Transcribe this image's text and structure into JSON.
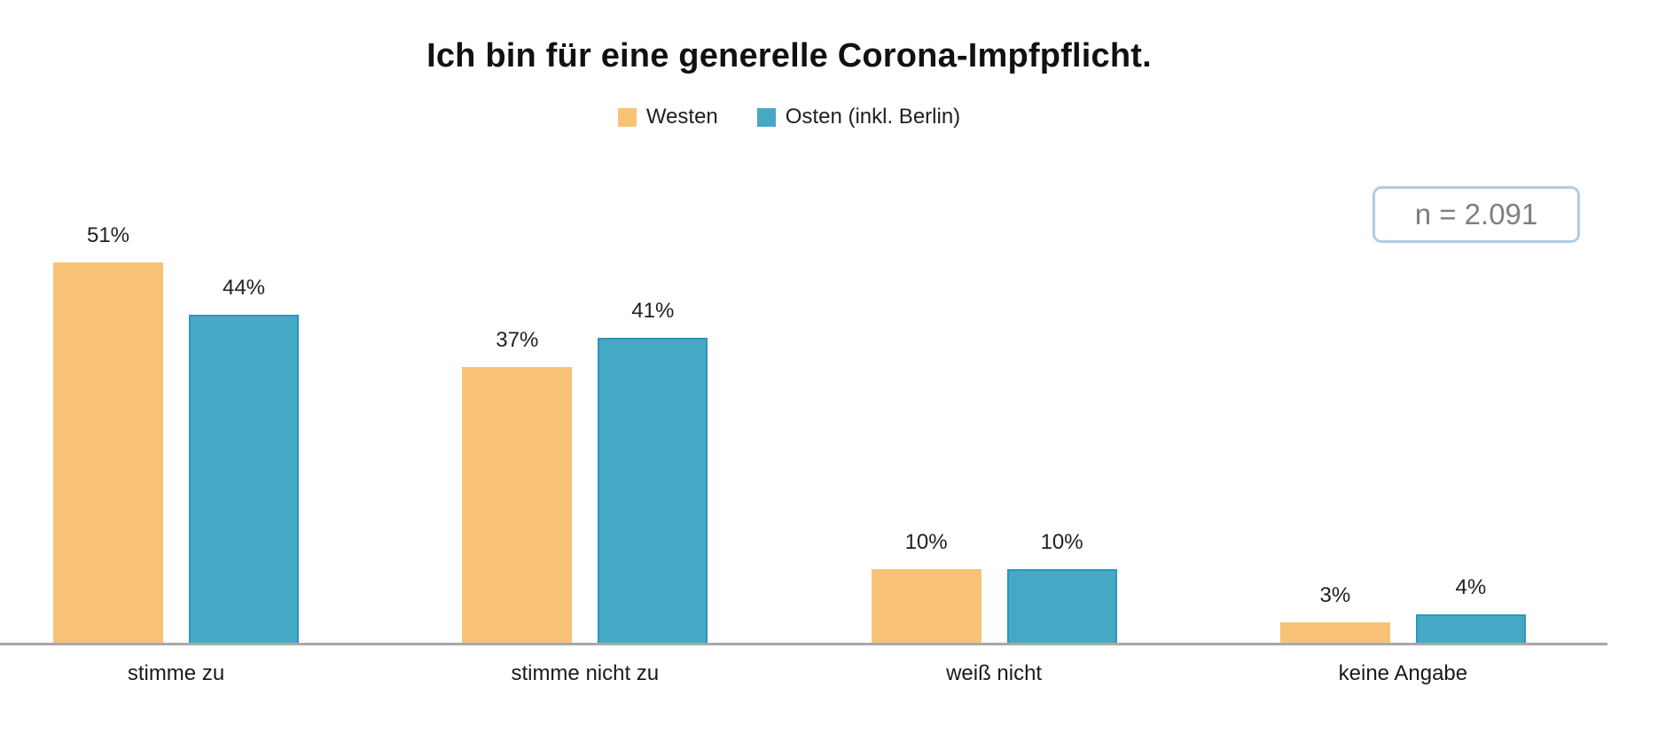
{
  "chart_data": {
    "type": "bar",
    "title": "Ich bin für eine generelle Corona-Impfpflicht.",
    "categories": [
      "stimme zu",
      "stimme nicht zu",
      "weiß nicht",
      "keine Angabe"
    ],
    "series": [
      {
        "name": "Westen",
        "color": "#F8C277",
        "border_color": "#F8C277",
        "values": [
          51,
          37,
          10,
          3
        ],
        "labels": [
          "51%",
          "37%",
          "10%",
          "3%"
        ]
      },
      {
        "name": "Osten (inkl. Berlin)",
        "color": "#45A9C6",
        "border_color": "#2D97BB",
        "values": [
          44,
          41,
          10,
          4
        ],
        "labels": [
          "44%",
          "41%",
          "10%",
          "4%"
        ]
      }
    ],
    "value_suffix": "%",
    "ylim": [
      0,
      55
    ],
    "grid": false,
    "legend_position": "top-center",
    "annotation": "n = 2.091",
    "colors": {
      "axis_line": "#A9A9A9",
      "title_text": "#111111",
      "label_text": "#1F1F1F",
      "annotation_text": "#7F7F7F",
      "annotation_border": "#B3CBE8",
      "background": "#FFFFFF"
    }
  }
}
